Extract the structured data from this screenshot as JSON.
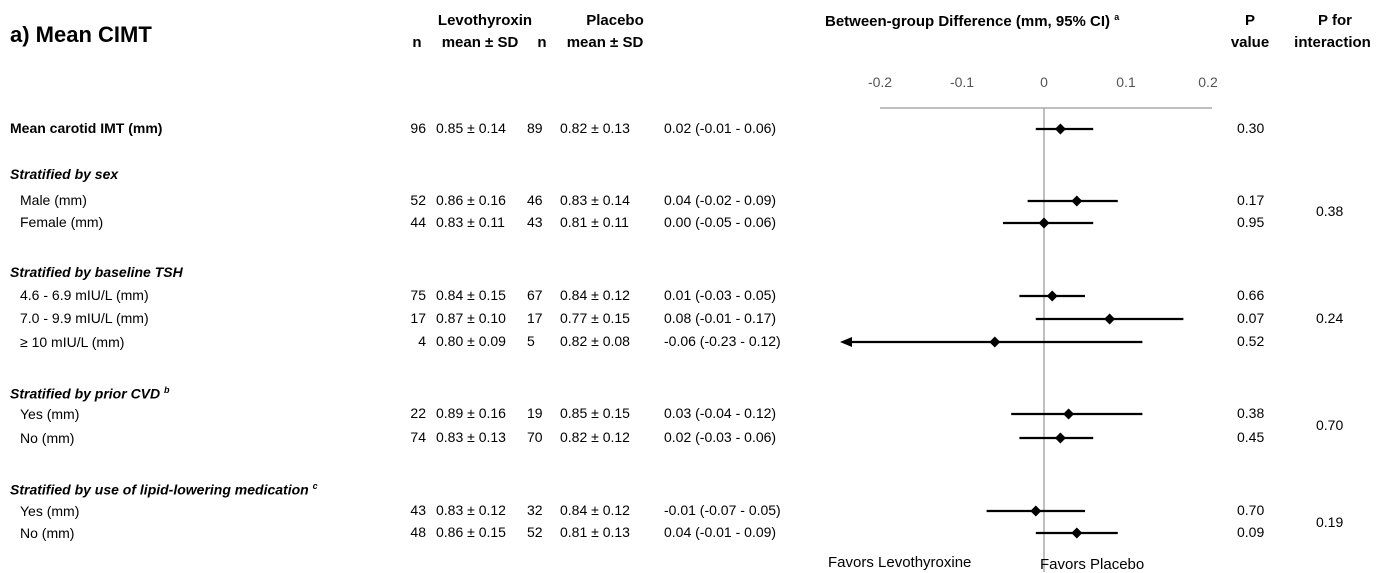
{
  "title": "a) Mean CIMT",
  "headers": {
    "levo": "Levothyroxin",
    "placebo": "Placebo",
    "n": "n",
    "mean_sd": "mean ± SD",
    "diff": "Between-group Difference (mm, 95% CI)",
    "diff_sup": "a",
    "p_line1": "P",
    "p_line2": "value",
    "pint_line1": "P for",
    "pint_line2": "interaction"
  },
  "favors": {
    "left": "Favors Levothyroxine",
    "right": "Favors Placebo"
  },
  "sections": [
    {
      "label": "Stratified by sex",
      "sup": ""
    },
    {
      "label": "Stratified by baseline TSH",
      "sup": ""
    },
    {
      "label": "Stratified by prior CVD",
      "sup": "b"
    },
    {
      "label": "Stratified by use of lipid-lowering medication",
      "sup": "c"
    }
  ],
  "interaction_p": [
    "0.38",
    "0.24",
    "0.70",
    "0.19"
  ],
  "chart_data": {
    "type": "forest",
    "xlim": [
      -0.2,
      0.2
    ],
    "xticks": [
      "-0.2",
      "-0.1",
      "0",
      "0.1",
      "0.2"
    ],
    "rows": [
      {
        "label": "Mean carotid IMT (mm)",
        "n1": "96",
        "m1": "0.85 ± 0.14",
        "n2": "89",
        "m2": "0.82 ± 0.13",
        "ci_text": "0.02 (-0.01 - 0.06)",
        "est": 0.02,
        "lo": -0.01,
        "hi": 0.06,
        "p": "0.30"
      },
      {
        "label": "Male (mm)",
        "n1": "52",
        "m1": "0.86 ± 0.16",
        "n2": "46",
        "m2": "0.83 ± 0.14",
        "ci_text": "0.04 (-0.02 - 0.09)",
        "est": 0.04,
        "lo": -0.02,
        "hi": 0.09,
        "p": "0.17"
      },
      {
        "label": "Female (mm)",
        "n1": "44",
        "m1": "0.83 ± 0.11",
        "n2": "43",
        "m2": "0.81 ± 0.11",
        "ci_text": "0.00 (-0.05 - 0.06)",
        "est": 0.0,
        "lo": -0.05,
        "hi": 0.06,
        "p": "0.95"
      },
      {
        "label": "4.6 - 6.9 mIU/L (mm)",
        "n1": "75",
        "m1": "0.84 ± 0.15",
        "n2": "67",
        "m2": "0.84 ± 0.12",
        "ci_text": "0.01 (-0.03 - 0.05)",
        "est": 0.01,
        "lo": -0.03,
        "hi": 0.05,
        "p": "0.66"
      },
      {
        "label": "7.0 - 9.9 mIU/L (mm)",
        "n1": "17",
        "m1": "0.87 ± 0.10",
        "n2": "17",
        "m2": "0.77 ± 0.15",
        "ci_text": "0.08 (-0.01 - 0.17)",
        "est": 0.08,
        "lo": -0.01,
        "hi": 0.17,
        "p": "0.07"
      },
      {
        "label": "≥ 10 mIU/L (mm)",
        "n1": "4",
        "m1": "0.80 ± 0.09",
        "n2": "5",
        "m2": "0.82 ± 0.08",
        "ci_text": "-0.06 (-0.23 - 0.12)",
        "est": -0.06,
        "lo": -0.23,
        "hi": 0.12,
        "p": "0.52"
      },
      {
        "label": "Yes (mm)",
        "n1": "22",
        "m1": "0.89 ± 0.16",
        "n2": "19",
        "m2": "0.85 ± 0.15",
        "ci_text": "0.03 (-0.04 - 0.12)",
        "est": 0.03,
        "lo": -0.04,
        "hi": 0.12,
        "p": "0.38"
      },
      {
        "label": "No (mm)",
        "n1": "74",
        "m1": "0.83 ± 0.13",
        "n2": "70",
        "m2": "0.82 ± 0.12",
        "ci_text": "0.02 (-0.03 - 0.06)",
        "est": 0.02,
        "lo": -0.03,
        "hi": 0.06,
        "p": "0.45"
      },
      {
        "label": "Yes (mm)",
        "n1": "43",
        "m1": "0.83 ± 0.12",
        "n2": "32",
        "m2": "0.84 ± 0.12",
        "ci_text": "-0.01 (-0.07 - 0.05)",
        "est": -0.01,
        "lo": -0.07,
        "hi": 0.05,
        "p": "0.70"
      },
      {
        "label": "No (mm)",
        "n1": "48",
        "m1": "0.86 ± 0.15",
        "n2": "52",
        "m2": "0.81 ± 0.13",
        "ci_text": "0.04 (-0.01 - 0.09)",
        "est": 0.04,
        "lo": -0.01,
        "hi": 0.09,
        "p": "0.09"
      }
    ]
  }
}
